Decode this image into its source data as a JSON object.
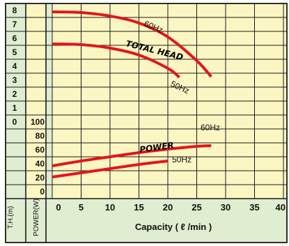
{
  "chart_data": {
    "type": "line",
    "title": "",
    "xlabel": "Capacity ( ℓ /min )",
    "x_ticks": [
      "0",
      "5",
      "10",
      "15",
      "20",
      "25",
      "30",
      "35",
      "40"
    ],
    "xlim": [
      0,
      40
    ],
    "th_axis": {
      "label": "T.H.(m)",
      "ticks": [
        "8",
        "7",
        "6",
        "5",
        "4",
        "3",
        "2",
        "1",
        "0"
      ],
      "range": [
        0,
        8
      ]
    },
    "power_axis": {
      "label": "POWER(W)",
      "ticks": [
        "100",
        "80",
        "60",
        "40",
        "20",
        "0"
      ],
      "range": [
        0,
        100
      ]
    },
    "curve_labels": {
      "total_head": "TOTAL HEAD",
      "power": "POWER"
    },
    "series": [
      {
        "name": "60Hz",
        "group": "total_head",
        "axis": "th",
        "x": [
          0,
          5,
          10,
          15,
          20,
          25,
          27.5
        ],
        "y": [
          7.9,
          7.85,
          7.6,
          7.1,
          6.1,
          4.4,
          3.25
        ]
      },
      {
        "name": "50Hz",
        "group": "total_head",
        "axis": "th",
        "x": [
          0,
          5,
          10,
          15,
          20,
          22
        ],
        "y": [
          5.6,
          5.55,
          5.3,
          4.8,
          3.85,
          3.2
        ]
      },
      {
        "name": "60Hz",
        "group": "power",
        "axis": "power",
        "x": [
          0,
          5,
          10,
          15,
          20,
          25,
          27.5
        ],
        "y": [
          37,
          44,
          50,
          56,
          61,
          65,
          66
        ]
      },
      {
        "name": "50Hz",
        "group": "power",
        "axis": "power",
        "x": [
          0,
          5,
          10,
          15,
          20
        ],
        "y": [
          21,
          27,
          33,
          39,
          44
        ]
      }
    ],
    "grid": true,
    "colors": {
      "plot_bg": "#fcf6c3",
      "panel_bg": "#dfedd0",
      "curve": "#e4151c",
      "grid": "#1a1a1a"
    }
  }
}
